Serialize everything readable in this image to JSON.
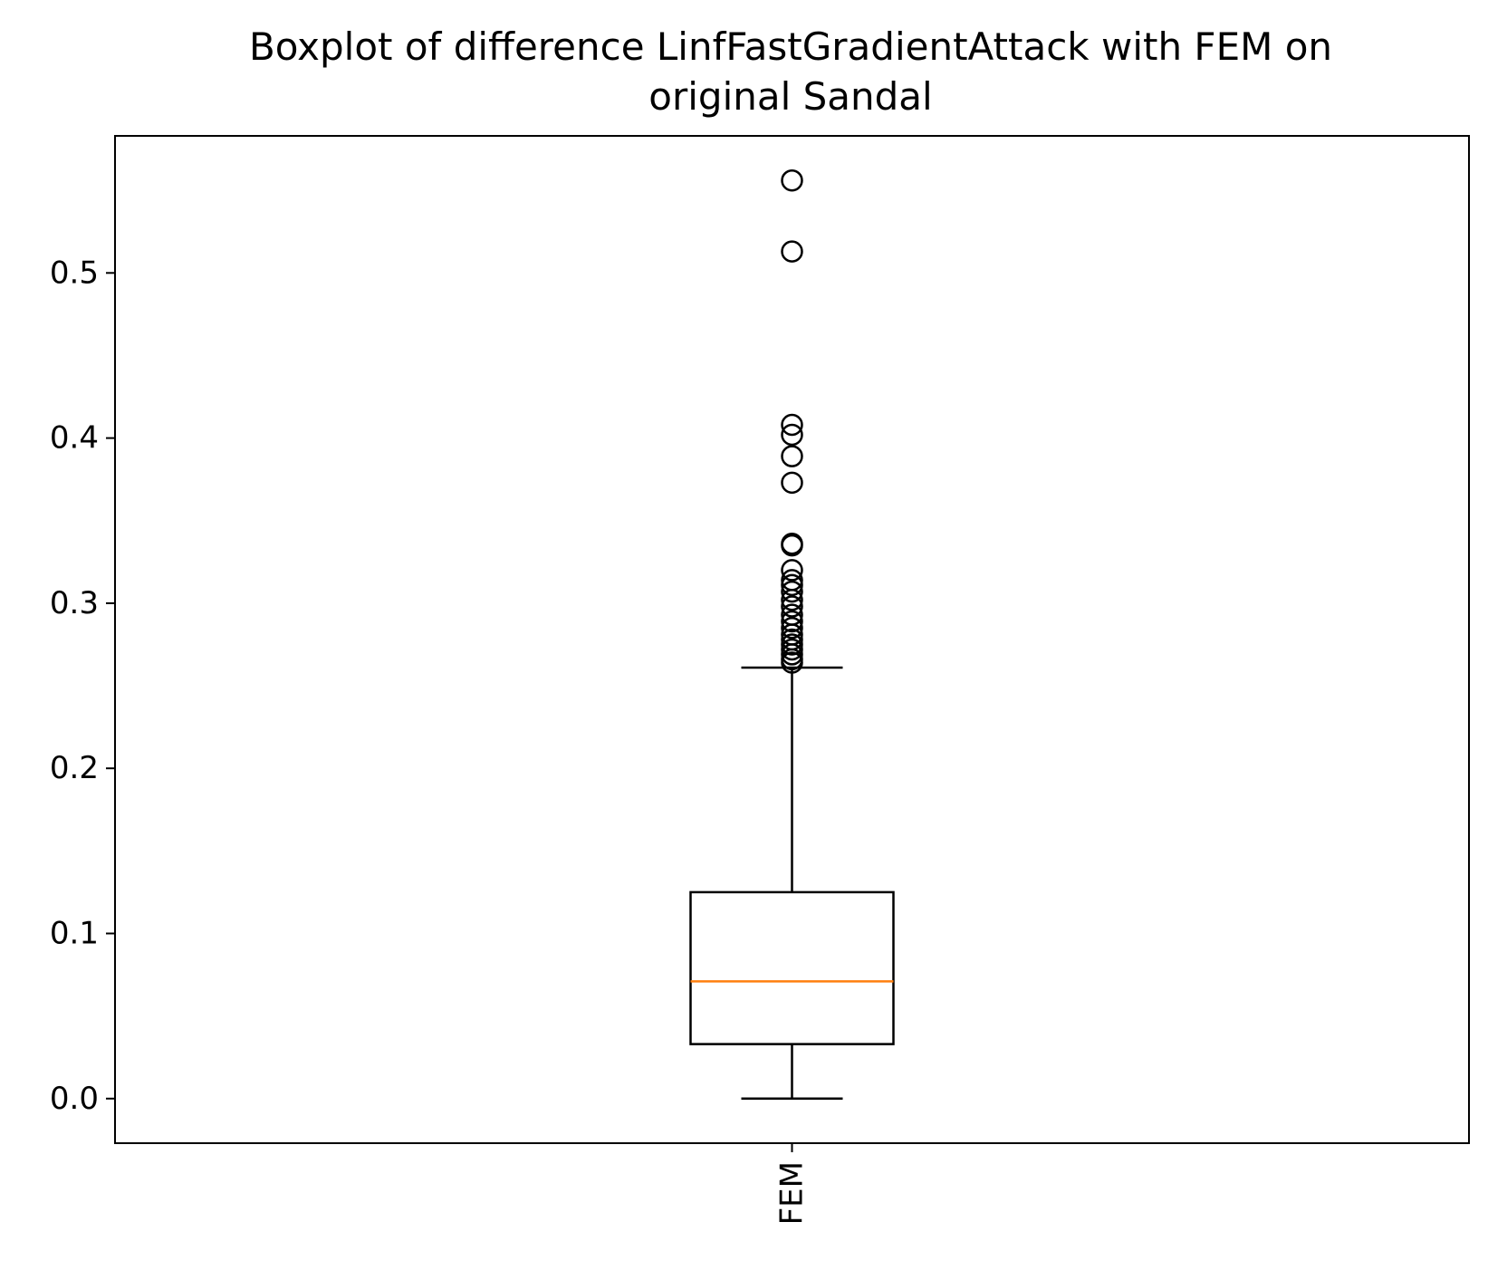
{
  "chart_data": {
    "type": "boxplot",
    "title_lines": [
      "Boxplot of difference LinfFastGradientAttack with FEM on",
      "original Sandal"
    ],
    "xlabel": "",
    "ylabel": "",
    "categories": [
      "FEM"
    ],
    "ylim": [
      -0.027,
      0.583
    ],
    "yticks": [
      0.0,
      0.1,
      0.2,
      0.3,
      0.4,
      0.5
    ],
    "ytick_labels": [
      "0.0",
      "0.1",
      "0.2",
      "0.3",
      "0.4",
      "0.5"
    ],
    "boxes": [
      {
        "name": "FEM",
        "whisker_low": 0.0,
        "q1": 0.033,
        "median": 0.071,
        "q3": 0.125,
        "whisker_high": 0.261,
        "outliers": [
          0.556,
          0.513,
          0.408,
          0.402,
          0.389,
          0.373,
          0.336,
          0.335,
          0.32,
          0.314,
          0.311,
          0.307,
          0.302,
          0.298,
          0.293,
          0.289,
          0.285,
          0.281,
          0.278,
          0.275,
          0.272,
          0.269,
          0.266,
          0.264
        ]
      }
    ],
    "grid": false,
    "colors": {
      "box": "#000000",
      "median": "#ff7f0e",
      "background": "#ffffff"
    }
  }
}
